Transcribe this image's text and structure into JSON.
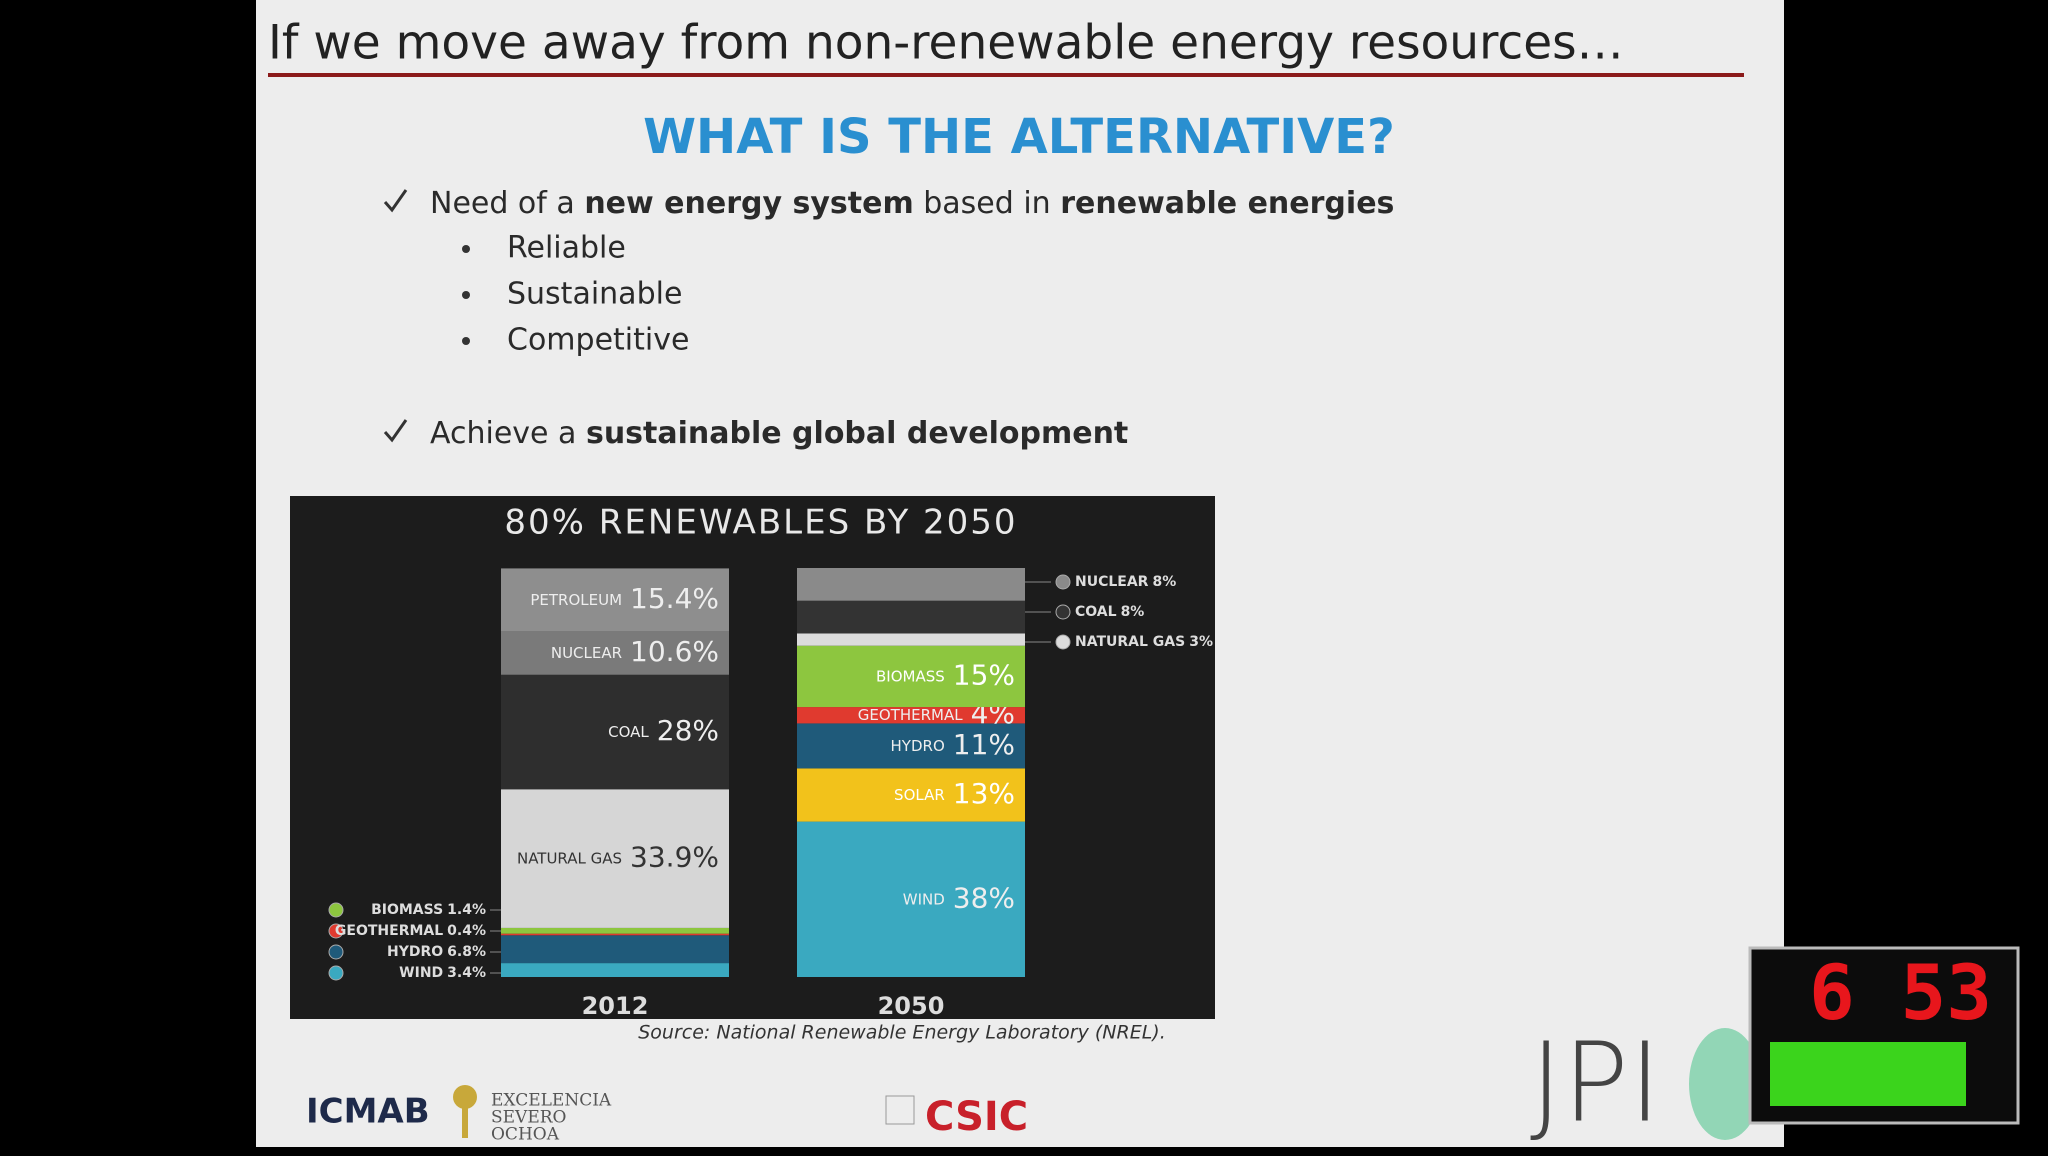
{
  "slide": {
    "title": "If we move away from non-renewable energy resources…",
    "heading": "WHAT IS THE ALTERNATIVE?",
    "bullets": [
      {
        "parts": [
          {
            "text": "Need of a "
          },
          {
            "text": "new energy system",
            "bold": true
          },
          {
            "text": " based in "
          },
          {
            "text": "renewable energies",
            "bold": true
          }
        ],
        "sub": [
          "Reliable",
          "Sustainable",
          "Competitive"
        ]
      },
      {
        "parts": [
          {
            "text": "Achieve a "
          },
          {
            "text": "sustainable global development",
            "bold": true
          }
        ],
        "sub": []
      }
    ],
    "source": "Source: National Renewable Energy Laboratory (NREL)."
  },
  "chart": {
    "type": "stacked-bar",
    "title": "80% RENEWABLES BY 2050",
    "bars": [
      {
        "label": "2012",
        "small_segments": [
          {
            "name": "WIND",
            "value": 3.4,
            "value_label": "3.4%",
            "color": "#3aa9c0"
          },
          {
            "name": "HYDRO",
            "value": 6.8,
            "value_label": "6.8%",
            "color": "#1f5a7a"
          },
          {
            "name": "GEOTHERMAL",
            "value": 0.4,
            "value_label": "0.4%",
            "color": "#e03a2f"
          },
          {
            "name": "BIOMASS",
            "value": 1.4,
            "value_label": "1.4%",
            "color": "#8dc63f"
          }
        ],
        "segments": [
          {
            "name": "NATURAL GAS",
            "value": 33.9,
            "value_label": "33.9%",
            "color": "#d6d6d6"
          },
          {
            "name": "COAL",
            "value": 28,
            "value_label": "28%",
            "color": "#2e2e2e"
          },
          {
            "name": "NUCLEAR",
            "value": 10.6,
            "value_label": "10.6%",
            "color": "#7a7a7a"
          },
          {
            "name": "PETROLEUM",
            "value": 15.4,
            "value_label": "15.4%",
            "color": "#8e8e8e"
          }
        ]
      },
      {
        "label": "2050",
        "segments": [
          {
            "name": "WIND",
            "value": 38,
            "value_label": "38%",
            "color": "#3aa9c0"
          },
          {
            "name": "SOLAR",
            "value": 13,
            "value_label": "13%",
            "color": "#f2c21b"
          },
          {
            "name": "HYDRO",
            "value": 11,
            "value_label": "11%",
            "color": "#1f5a7a"
          },
          {
            "name": "GEOTHERMAL",
            "value": 4,
            "value_label": "4%",
            "color": "#e03a2f"
          },
          {
            "name": "BIOMASS",
            "value": 15,
            "value_label": "15%",
            "color": "#8dc63f"
          }
        ],
        "small_segments": [
          {
            "name": "NATURAL GAS",
            "value": 3,
            "value_label": "3%",
            "color": "#dcdcdc"
          },
          {
            "name": "COAL",
            "value": 8,
            "value_label": "8%",
            "color": "#333333"
          },
          {
            "name": "NUCLEAR",
            "value": 8,
            "value_label": "8%",
            "color": "#8a8a8a"
          }
        ]
      }
    ]
  },
  "logos": {
    "icmab": "ICMAB",
    "excelencia": [
      "EXCELENCIA",
      "SEVERO",
      "OCHOA"
    ],
    "csic": "CSIC",
    "jpi": "JPI"
  },
  "timer": {
    "time": "6 53"
  }
}
